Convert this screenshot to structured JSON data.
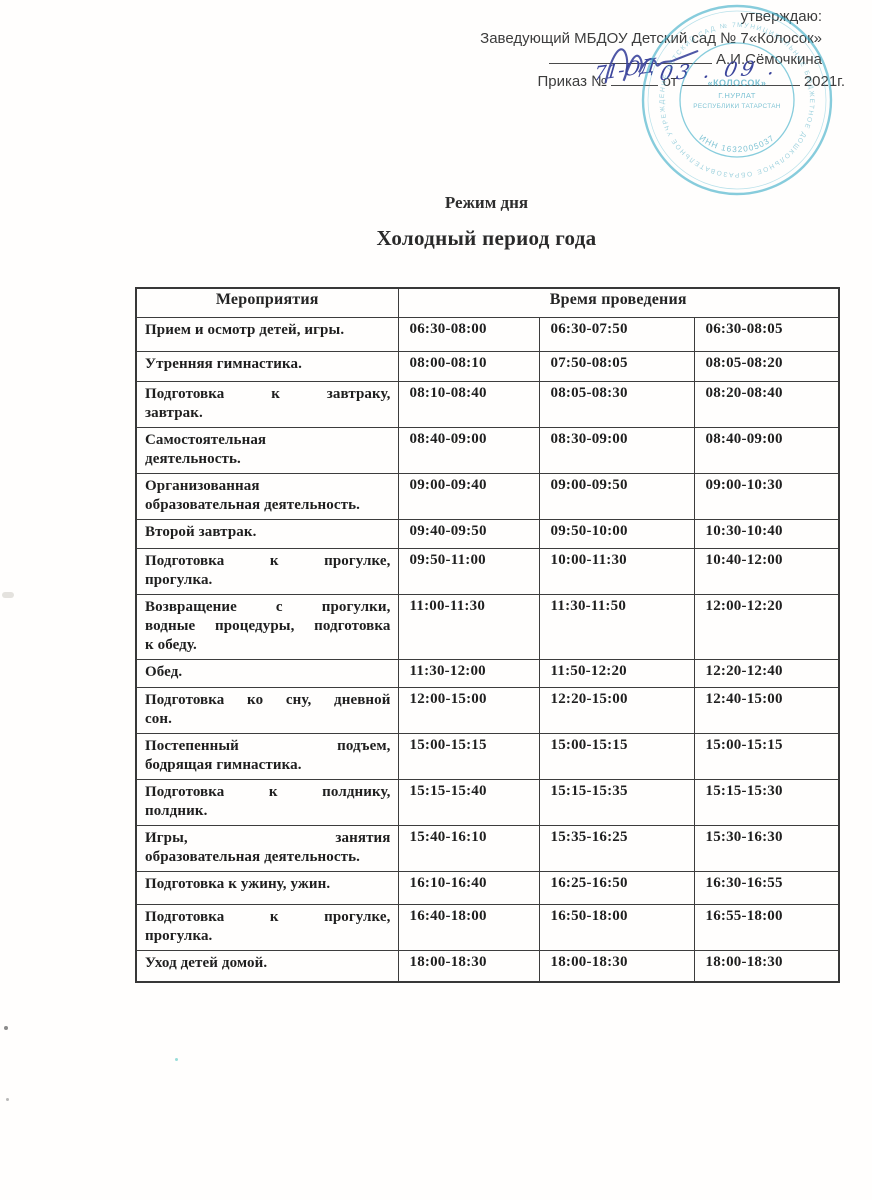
{
  "approval": {
    "line1": "утверждаю:",
    "line2": "Заведующий МБДОУ Детский сад № 7«Колосок»",
    "signature_name": "А.И.Сёмочкина",
    "order_prefix": "Приказ №",
    "order_from": "от",
    "order_year": "2021г.",
    "handwritten_number": "71-ОД",
    "handwritten_date": "03 . 09 .",
    "ink_color": "#3c459c"
  },
  "stamp": {
    "ring_text": "МУНИЦИПАЛЬНОЕ БЮДЖЕТНОЕ ДОШКОЛЬНОЕ ОБРАЗОВАТЕЛЬНОЕ УЧРЕЖДЕНИЕ ДЕТСКИЙ САД № 7",
    "center_line1": "«КОЛОСОК»",
    "center_line2": "Г.НУРЛАТ",
    "center_line3": "РЕСПУБЛИКИ ТАТАРСТАН",
    "inn": "ИНН 1632005037",
    "color": "#3fafc9"
  },
  "title_small": "Режим дня",
  "title_big": "Холодный период года",
  "table": {
    "header_col1": "Мероприятия",
    "header_times": "Время проведения",
    "rows": [
      {
        "activity_lines": [
          "Прием и осмотр детей, игры."
        ],
        "times": [
          "06:30-08:00",
          "06:30-07:50",
          "06:30-08:05"
        ]
      },
      {
        "activity_lines": [
          "Утренняя гимнастика."
        ],
        "times": [
          "08:00-08:10",
          "07:50-08:05",
          "08:05-08:20"
        ]
      },
      {
        "activity_lines": [
          "Подготовка к завтраку,",
          "завтрак."
        ],
        "times": [
          "08:10-08:40",
          "08:05-08:30",
          "08:20-08:40"
        ]
      },
      {
        "activity_lines": [
          "Самостоятельная",
          "деятельность."
        ],
        "times": [
          "08:40-09:00",
          "08:30-09:00",
          "08:40-09:00"
        ]
      },
      {
        "activity_lines": [
          "Организованная",
          "образовательная деятельность."
        ],
        "times": [
          "09:00-09:40",
          "09:00-09:50",
          "09:00-10:30"
        ]
      },
      {
        "activity_lines": [
          "Второй завтрак."
        ],
        "times": [
          "09:40-09:50",
          "09:50-10:00",
          "10:30-10:40"
        ]
      },
      {
        "activity_lines": [
          "Подготовка к прогулке,",
          "прогулка."
        ],
        "times": [
          "09:50-11:00",
          "10:00-11:30",
          "10:40-12:00"
        ]
      },
      {
        "activity_lines": [
          "Возвращение с прогулки,",
          "водные процедуры, подготовка",
          "к обеду."
        ],
        "times": [
          "11:00-11:30",
          "11:30-11:50",
          "12:00-12:20"
        ]
      },
      {
        "activity_lines": [
          "Обед."
        ],
        "times": [
          "11:30-12:00",
          "11:50-12:20",
          "12:20-12:40"
        ]
      },
      {
        "activity_lines": [
          "Подготовка ко сну, дневной",
          "сон."
        ],
        "times": [
          "12:00-15:00",
          "12:20-15:00",
          "12:40-15:00"
        ]
      },
      {
        "activity_lines": [
          "Постепенный подъем,",
          "бодрящая гимнастика."
        ],
        "times": [
          "15:00-15:15",
          "15:00-15:15",
          "15:00-15:15"
        ]
      },
      {
        "activity_lines": [
          "Подготовка к полднику,",
          "полдник."
        ],
        "times": [
          "15:15-15:40",
          "15:15-15:35",
          "15:15-15:30"
        ]
      },
      {
        "activity_lines": [
          "Игры, занятия",
          "образовательная деятельность."
        ],
        "times": [
          "15:40-16:10",
          "15:35-16:25",
          "15:30-16:30"
        ]
      },
      {
        "activity_lines": [
          "Подготовка к ужину, ужин."
        ],
        "times": [
          "16:10-16:40",
          "16:25-16:50",
          "16:30-16:55"
        ]
      },
      {
        "activity_lines": [
          "Подготовка к прогулке,",
          "прогулка."
        ],
        "times": [
          "16:40-18:00",
          "16:50-18:00",
          "16:55-18:00"
        ]
      },
      {
        "activity_lines": [
          "Уход детей домой."
        ],
        "times": [
          "18:00-18:30",
          "18:00-18:30",
          "18:00-18:30"
        ]
      }
    ]
  }
}
